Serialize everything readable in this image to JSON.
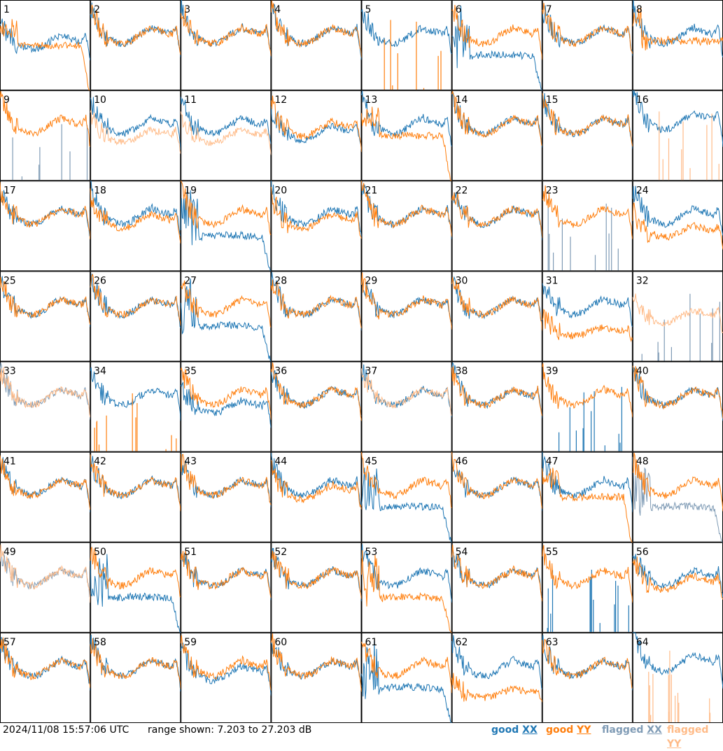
{
  "footer": {
    "timestamp": "2024/11/08 15:57:06 UTC",
    "range_text": "range shown: 7.203 to 27.203 dB",
    "legend": [
      {
        "status": "good",
        "pol": "XX",
        "color": "#1f77b4"
      },
      {
        "status": "good",
        "pol": "YY",
        "color": "#ff7f0e"
      },
      {
        "status": "flagged",
        "pol": "XX",
        "color": "#7f9bb5"
      },
      {
        "status": "flagged",
        "pol": "YY",
        "color": "#ffbb88"
      }
    ]
  },
  "chart_data": {
    "type": "line",
    "layout": "small-multiples 8x8",
    "ylim": [
      7.203,
      27.203
    ],
    "yunit": "dB",
    "grid": false,
    "legend_placement": "bottom-right",
    "colors": {
      "good_xx": "#1f77b4",
      "good_yy": "#ff7f0e",
      "flagged_xx": "#7f9bb5",
      "flagged_yy": "#ffbb88"
    },
    "panels": [
      {
        "id": "1",
        "xx": "good",
        "yy": "good",
        "xx_level": 0.48,
        "yy_level": 0.52,
        "xx_profile": "normal",
        "yy_profile": "yydrop"
      },
      {
        "id": "2",
        "xx": "good",
        "yy": "good",
        "xx_level": 0.55,
        "yy_level": 0.55,
        "xx_profile": "normal",
        "yy_profile": "normal"
      },
      {
        "id": "3",
        "xx": "good",
        "yy": "good",
        "xx_level": 0.55,
        "yy_level": 0.55,
        "xx_profile": "normal",
        "yy_profile": "normal"
      },
      {
        "id": "4",
        "xx": "good",
        "yy": "good",
        "xx_level": 0.55,
        "yy_level": 0.55,
        "xx_profile": "normal",
        "yy_profile": "normal"
      },
      {
        "id": "5",
        "xx": "good",
        "yy": "good",
        "xx_level": 0.55,
        "yy_level": 0.0,
        "xx_profile": "normal",
        "yy_profile": "spikes"
      },
      {
        "id": "6",
        "xx": "good",
        "yy": "good",
        "xx_level": 0.35,
        "yy_level": 0.55,
        "xx_profile": "dip",
        "yy_profile": "normal"
      },
      {
        "id": "7",
        "xx": "good",
        "yy": "good",
        "xx_level": 0.55,
        "yy_level": 0.55,
        "xx_profile": "normal",
        "yy_profile": "normal"
      },
      {
        "id": "8",
        "xx": "good",
        "yy": "good",
        "xx_level": 0.55,
        "yy_level": 0.52,
        "xx_profile": "normal",
        "yy_profile": "flat"
      },
      {
        "id": "9",
        "xx": "flagged",
        "yy": "good",
        "xx_level": 0.0,
        "yy_level": 0.55,
        "xx_profile": "spikes",
        "yy_profile": "normal"
      },
      {
        "id": "10",
        "xx": "good",
        "yy": "flagged",
        "xx_level": 0.55,
        "yy_level": 0.45,
        "xx_profile": "normal",
        "yy_profile": "normal"
      },
      {
        "id": "11",
        "xx": "good",
        "yy": "flagged",
        "xx_level": 0.55,
        "yy_level": 0.45,
        "xx_profile": "normal",
        "yy_profile": "normal"
      },
      {
        "id": "12",
        "xx": "good",
        "yy": "good",
        "xx_level": 0.48,
        "yy_level": 0.52,
        "xx_profile": "normal",
        "yy_profile": "normal"
      },
      {
        "id": "13",
        "xx": "good",
        "yy": "good",
        "xx_level": 0.55,
        "yy_level": 0.4,
        "xx_profile": "normal",
        "yy_profile": "yydrop"
      },
      {
        "id": "14",
        "xx": "good",
        "yy": "good",
        "xx_level": 0.55,
        "yy_level": 0.55,
        "xx_profile": "normal",
        "yy_profile": "normal"
      },
      {
        "id": "15",
        "xx": "good",
        "yy": "good",
        "xx_level": 0.55,
        "yy_level": 0.55,
        "xx_profile": "normal",
        "yy_profile": "normal"
      },
      {
        "id": "16",
        "xx": "good",
        "yy": "flagged",
        "xx_level": 0.6,
        "yy_level": 0.0,
        "xx_profile": "normal",
        "yy_profile": "spikes"
      },
      {
        "id": "17",
        "xx": "good",
        "yy": "good",
        "xx_level": 0.55,
        "yy_level": 0.55,
        "xx_profile": "normal",
        "yy_profile": "normal"
      },
      {
        "id": "18",
        "xx": "good",
        "yy": "good",
        "xx_level": 0.55,
        "yy_level": 0.5,
        "xx_profile": "normal",
        "yy_profile": "normal"
      },
      {
        "id": "19",
        "xx": "good",
        "yy": "good",
        "xx_level": 0.35,
        "yy_level": 0.55,
        "xx_profile": "dip",
        "yy_profile": "normal"
      },
      {
        "id": "20",
        "xx": "good",
        "yy": "good",
        "xx_level": 0.55,
        "yy_level": 0.5,
        "xx_profile": "normal",
        "yy_profile": "normal"
      },
      {
        "id": "21",
        "xx": "good",
        "yy": "good",
        "xx_level": 0.55,
        "yy_level": 0.55,
        "xx_profile": "normal",
        "yy_profile": "normal"
      },
      {
        "id": "22",
        "xx": "good",
        "yy": "good",
        "xx_level": 0.55,
        "yy_level": 0.55,
        "xx_profile": "normal",
        "yy_profile": "normal"
      },
      {
        "id": "23",
        "xx": "flagged",
        "yy": "good",
        "xx_level": 0.0,
        "yy_level": 0.55,
        "xx_profile": "spikes",
        "yy_profile": "normal"
      },
      {
        "id": "24",
        "xx": "good",
        "yy": "good",
        "xx_level": 0.55,
        "yy_level": 0.4,
        "xx_profile": "normal",
        "yy_profile": "normal"
      },
      {
        "id": "25",
        "xx": "good",
        "yy": "good",
        "xx_level": 0.55,
        "yy_level": 0.55,
        "xx_profile": "normal",
        "yy_profile": "normal"
      },
      {
        "id": "26",
        "xx": "good",
        "yy": "good",
        "xx_level": 0.55,
        "yy_level": 0.55,
        "xx_profile": "normal",
        "yy_profile": "normal"
      },
      {
        "id": "27",
        "xx": "good",
        "yy": "good",
        "xx_level": 0.35,
        "yy_level": 0.55,
        "xx_profile": "dip",
        "yy_profile": "normal"
      },
      {
        "id": "28",
        "xx": "good",
        "yy": "good",
        "xx_level": 0.55,
        "yy_level": 0.55,
        "xx_profile": "normal",
        "yy_profile": "normal"
      },
      {
        "id": "29",
        "xx": "good",
        "yy": "good",
        "xx_level": 0.55,
        "yy_level": 0.55,
        "xx_profile": "normal",
        "yy_profile": "normal"
      },
      {
        "id": "30",
        "xx": "good",
        "yy": "good",
        "xx_level": 0.55,
        "yy_level": 0.55,
        "xx_profile": "normal",
        "yy_profile": "normal"
      },
      {
        "id": "31",
        "xx": "good",
        "yy": "good",
        "xx_level": 0.55,
        "yy_level": 0.3,
        "xx_profile": "normal",
        "yy_profile": "normal"
      },
      {
        "id": "32",
        "xx": "flagged",
        "yy": "flagged",
        "xx_level": 0.0,
        "yy_level": 0.45,
        "xx_profile": "spikes",
        "yy_profile": "normal"
      },
      {
        "id": "33",
        "xx": "flagged",
        "yy": "flagged",
        "xx_level": 0.55,
        "yy_level": 0.55,
        "xx_profile": "normal",
        "yy_profile": "normal"
      },
      {
        "id": "34",
        "xx": "good",
        "yy": "good",
        "xx_level": 0.55,
        "yy_level": 0.0,
        "xx_profile": "normal",
        "yy_profile": "spikes"
      },
      {
        "id": "35",
        "xx": "good",
        "yy": "good",
        "xx_level": 0.45,
        "yy_level": 0.55,
        "xx_profile": "normal",
        "yy_profile": "normal"
      },
      {
        "id": "36",
        "xx": "good",
        "yy": "good",
        "xx_level": 0.55,
        "yy_level": 0.55,
        "xx_profile": "normal",
        "yy_profile": "normal"
      },
      {
        "id": "37",
        "xx": "good",
        "yy": "flagged",
        "xx_level": 0.55,
        "yy_level": 0.55,
        "xx_profile": "normal",
        "yy_profile": "normal"
      },
      {
        "id": "38",
        "xx": "good",
        "yy": "good",
        "xx_level": 0.55,
        "yy_level": 0.55,
        "xx_profile": "normal",
        "yy_profile": "normal"
      },
      {
        "id": "39",
        "xx": "good",
        "yy": "good",
        "xx_level": 0.0,
        "yy_level": 0.55,
        "xx_profile": "spikes",
        "yy_profile": "normal"
      },
      {
        "id": "40",
        "xx": "good",
        "yy": "good",
        "xx_level": 0.55,
        "yy_level": 0.55,
        "xx_profile": "normal",
        "yy_profile": "normal"
      },
      {
        "id": "41",
        "xx": "good",
        "yy": "good",
        "xx_level": 0.55,
        "yy_level": 0.55,
        "xx_profile": "normal",
        "yy_profile": "normal"
      },
      {
        "id": "42",
        "xx": "good",
        "yy": "good",
        "xx_level": 0.55,
        "yy_level": 0.55,
        "xx_profile": "normal",
        "yy_profile": "normal"
      },
      {
        "id": "43",
        "xx": "good",
        "yy": "good",
        "xx_level": 0.55,
        "yy_level": 0.55,
        "xx_profile": "normal",
        "yy_profile": "normal"
      },
      {
        "id": "44",
        "xx": "good",
        "yy": "good",
        "xx_level": 0.55,
        "yy_level": 0.5,
        "xx_profile": "normal",
        "yy_profile": "normal"
      },
      {
        "id": "45",
        "xx": "good",
        "yy": "good",
        "xx_level": 0.35,
        "yy_level": 0.55,
        "xx_profile": "dip",
        "yy_profile": "normal"
      },
      {
        "id": "46",
        "xx": "good",
        "yy": "good",
        "xx_level": 0.55,
        "yy_level": 0.55,
        "xx_profile": "normal",
        "yy_profile": "normal"
      },
      {
        "id": "47",
        "xx": "good",
        "yy": "good",
        "xx_level": 0.55,
        "yy_level": 0.4,
        "xx_profile": "normal",
        "yy_profile": "yydrop"
      },
      {
        "id": "48",
        "xx": "flagged",
        "yy": "good",
        "xx_level": 0.35,
        "yy_level": 0.55,
        "xx_profile": "dip",
        "yy_profile": "normal"
      },
      {
        "id": "49",
        "xx": "flagged",
        "yy": "flagged",
        "xx_level": 0.55,
        "yy_level": 0.55,
        "xx_profile": "normal",
        "yy_profile": "normal"
      },
      {
        "id": "50",
        "xx": "good",
        "yy": "good",
        "xx_level": 0.4,
        "yy_level": 0.55,
        "xx_profile": "dip",
        "yy_profile": "normal"
      },
      {
        "id": "51",
        "xx": "good",
        "yy": "good",
        "xx_level": 0.55,
        "yy_level": 0.55,
        "xx_profile": "normal",
        "yy_profile": "normal"
      },
      {
        "id": "52",
        "xx": "good",
        "yy": "good",
        "xx_level": 0.55,
        "yy_level": 0.55,
        "xx_profile": "normal",
        "yy_profile": "normal"
      },
      {
        "id": "53",
        "xx": "good",
        "yy": "good",
        "xx_level": 0.55,
        "yy_level": 0.35,
        "xx_profile": "normal",
        "yy_profile": "dip"
      },
      {
        "id": "54",
        "xx": "good",
        "yy": "good",
        "xx_level": 0.55,
        "yy_level": 0.55,
        "xx_profile": "normal",
        "yy_profile": "normal"
      },
      {
        "id": "55",
        "xx": "good",
        "yy": "good",
        "xx_level": 0.0,
        "yy_level": 0.55,
        "xx_profile": "spikes",
        "yy_profile": "normal"
      },
      {
        "id": "56",
        "xx": "good",
        "yy": "good",
        "xx_level": 0.55,
        "yy_level": 0.5,
        "xx_profile": "normal",
        "yy_profile": "normal"
      },
      {
        "id": "57",
        "xx": "good",
        "yy": "good",
        "xx_level": 0.55,
        "yy_level": 0.55,
        "xx_profile": "normal",
        "yy_profile": "normal"
      },
      {
        "id": "58",
        "xx": "good",
        "yy": "good",
        "xx_level": 0.55,
        "yy_level": 0.55,
        "xx_profile": "normal",
        "yy_profile": "normal"
      },
      {
        "id": "59",
        "xx": "good",
        "yy": "good",
        "xx_level": 0.5,
        "yy_level": 0.55,
        "xx_profile": "normal",
        "yy_profile": "normal"
      },
      {
        "id": "60",
        "xx": "good",
        "yy": "good",
        "xx_level": 0.55,
        "yy_level": 0.55,
        "xx_profile": "normal",
        "yy_profile": "normal"
      },
      {
        "id": "61",
        "xx": "good",
        "yy": "good",
        "xx_level": 0.4,
        "yy_level": 0.55,
        "xx_profile": "dip",
        "yy_profile": "normal"
      },
      {
        "id": "62",
        "xx": "good",
        "yy": "good",
        "xx_level": 0.55,
        "yy_level": 0.3,
        "xx_profile": "normal",
        "yy_profile": "normal"
      },
      {
        "id": "63",
        "xx": "good",
        "yy": "good",
        "xx_level": 0.55,
        "yy_level": 0.55,
        "xx_profile": "normal",
        "yy_profile": "normal"
      },
      {
        "id": "64",
        "xx": "good",
        "yy": "flagged",
        "xx_level": 0.6,
        "yy_level": 0.0,
        "xx_profile": "normal",
        "yy_profile": "spikes"
      }
    ]
  }
}
